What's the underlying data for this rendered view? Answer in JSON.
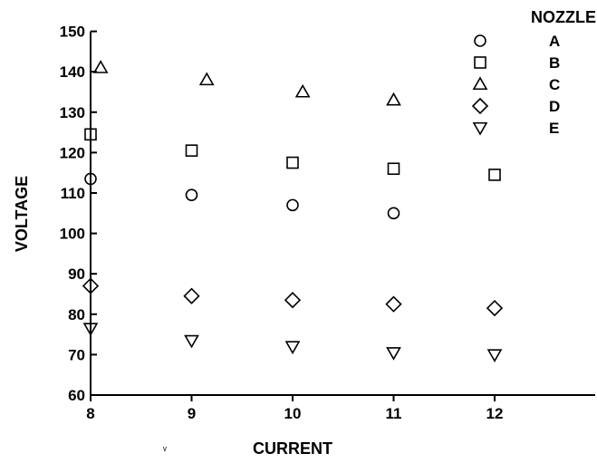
{
  "chart_data": {
    "type": "scatter",
    "title": "",
    "xlabel": "CURRENT",
    "ylabel": "VOLTAGE",
    "xlim": [
      8,
      13
    ],
    "ylim": [
      60,
      150
    ],
    "x_ticks": [
      8,
      9,
      10,
      11,
      12
    ],
    "y_ticks": [
      60,
      70,
      80,
      90,
      100,
      110,
      120,
      130,
      140,
      150
    ],
    "grid": false,
    "legend": {
      "title": "NOZZLE",
      "position": "top-right",
      "entries": [
        "A",
        "B",
        "C",
        "D",
        "E"
      ]
    },
    "series": [
      {
        "name": "A",
        "marker": "circle",
        "points": [
          [
            8,
            113.5
          ],
          [
            9,
            109.5
          ],
          [
            10,
            107
          ],
          [
            11,
            105
          ]
        ]
      },
      {
        "name": "B",
        "marker": "square",
        "points": [
          [
            8,
            124.5
          ],
          [
            9,
            120.5
          ],
          [
            10,
            117.5
          ],
          [
            11,
            116
          ],
          [
            12,
            114.5
          ]
        ]
      },
      {
        "name": "C",
        "marker": "triangle-up",
        "points": [
          [
            8.1,
            141
          ],
          [
            9.15,
            138
          ],
          [
            10.1,
            135
          ],
          [
            11,
            133
          ]
        ]
      },
      {
        "name": "D",
        "marker": "diamond",
        "points": [
          [
            8,
            87
          ],
          [
            9,
            84.5
          ],
          [
            10,
            83.5
          ],
          [
            11,
            82.5
          ],
          [
            12,
            81.5
          ]
        ]
      },
      {
        "name": "E",
        "marker": "triangle-down",
        "points": [
          [
            8,
            76.5
          ],
          [
            9,
            73.5
          ],
          [
            10,
            72
          ],
          [
            11,
            70.5
          ],
          [
            12,
            70
          ]
        ]
      }
    ]
  }
}
